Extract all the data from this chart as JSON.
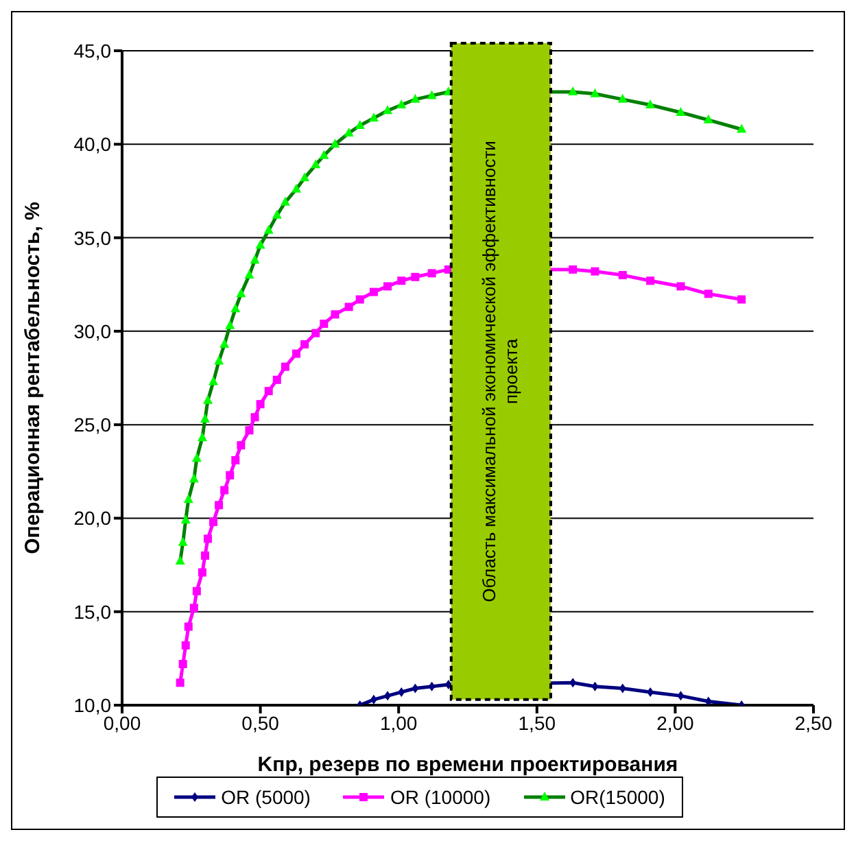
{
  "chart_data": {
    "type": "line",
    "xlabel": "Kпр, резерв по времени проектирования",
    "ylabel": "Операционная рентабельность, %",
    "x": [
      0.21,
      0.22,
      0.23,
      0.24,
      0.26,
      0.27,
      0.29,
      0.3,
      0.31,
      0.33,
      0.35,
      0.37,
      0.39,
      0.41,
      0.43,
      0.46,
      0.48,
      0.5,
      0.53,
      0.56,
      0.59,
      0.63,
      0.66,
      0.7,
      0.73,
      0.77,
      0.82,
      0.86,
      0.91,
      0.96,
      1.01,
      1.06,
      1.12,
      1.18,
      1.63,
      1.71,
      1.81,
      1.91,
      2.02,
      2.12,
      2.24
    ],
    "series": [
      {
        "name": "OR (5000)",
        "color": "#000080",
        "marker": "diamond",
        "values": [
          null,
          null,
          null,
          null,
          null,
          null,
          null,
          null,
          null,
          null,
          null,
          null,
          null,
          null,
          null,
          null,
          null,
          null,
          null,
          null,
          null,
          null,
          null,
          null,
          null,
          null,
          null,
          10.0,
          10.3,
          10.5,
          10.7,
          10.9,
          11.0,
          11.1,
          11.2,
          11.0,
          10.9,
          10.7,
          10.5,
          10.2,
          10.0
        ]
      },
      {
        "name": "OR (10000)",
        "color": "#ff00ff",
        "marker": "square",
        "values": [
          11.2,
          12.2,
          13.2,
          14.2,
          15.2,
          16.1,
          17.1,
          18.0,
          18.9,
          19.8,
          20.7,
          21.5,
          22.3,
          23.1,
          23.9,
          24.7,
          25.4,
          26.1,
          26.8,
          27.4,
          28.1,
          28.8,
          29.3,
          29.9,
          30.4,
          30.9,
          31.3,
          31.7,
          32.1,
          32.4,
          32.7,
          32.9,
          33.1,
          33.3,
          33.3,
          33.2,
          33.0,
          32.7,
          32.4,
          32.0,
          31.7
        ]
      },
      {
        "name": "OR(15000)",
        "color": "#008000",
        "marker": "triangle",
        "values": [
          17.7,
          18.7,
          19.9,
          21.0,
          22.1,
          23.2,
          24.3,
          25.3,
          26.3,
          27.3,
          28.4,
          29.3,
          30.3,
          31.2,
          32.0,
          33.0,
          33.8,
          34.6,
          35.4,
          36.2,
          36.9,
          37.6,
          38.2,
          38.9,
          39.4,
          40.0,
          40.6,
          41.0,
          41.4,
          41.8,
          42.1,
          42.4,
          42.6,
          42.8,
          42.8,
          42.7,
          42.4,
          42.1,
          41.7,
          41.3,
          40.8
        ]
      }
    ],
    "xlim": [
      0,
      2.5
    ],
    "xticks": [
      {
        "value": 0,
        "label": "0,00"
      },
      {
        "value": 0.5,
        "label": "0,50"
      },
      {
        "value": 1,
        "label": "1,00"
      },
      {
        "value": 1.5,
        "label": "1,50"
      },
      {
        "value": 2,
        "label": "2,00"
      },
      {
        "value": 2.5,
        "label": "2,50"
      }
    ],
    "ylim": [
      10,
      45
    ],
    "yticks": [
      {
        "value": 10,
        "label": "10,0"
      },
      {
        "value": 15,
        "label": "15,0"
      },
      {
        "value": 20,
        "label": "20,0"
      },
      {
        "value": 25,
        "label": "25,0"
      },
      {
        "value": 30,
        "label": "30,0"
      },
      {
        "value": 35,
        "label": "35,0"
      },
      {
        "value": 40,
        "label": "40,0"
      },
      {
        "value": 45,
        "label": "45,0"
      }
    ],
    "bands": [
      {
        "axis": "x",
        "from": 1.19,
        "to": 1.55,
        "label": "Область максимальной экономической эффективности проекта",
        "color": "#99cc00"
      }
    ],
    "grid": "y",
    "legend": "bottom",
    "line_style": "solid"
  }
}
